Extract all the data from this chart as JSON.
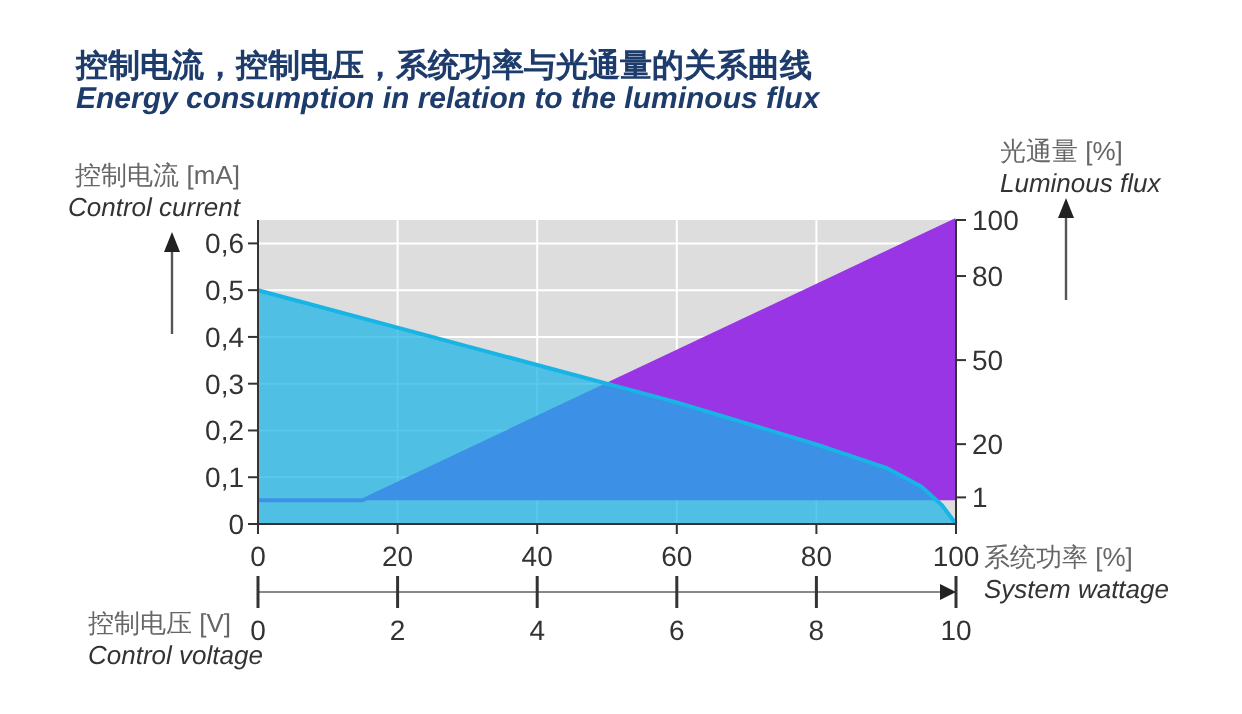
{
  "chart_data": {
    "type": "area",
    "title": "控制电流，控制电压，系统功率与光通量的关系曲线",
    "subtitle": "Energy consumption in relation to the luminous flux",
    "xlabel": "系统功率 [%]\nSystem wattage",
    "ylabel": "控制电流 [mA]\nControl current",
    "y2label": "光通量 [%]\nLuminous flux",
    "x2label": "控制电压 [V]\nControl voltage",
    "series": [
      {
        "color": "#9a35e6",
        "axis": "y2",
        "x": [
          0,
          15,
          100
        ],
        "values": [
          0,
          0,
          100
        ]
      },
      {
        "color": "#18b4e6",
        "x": [
          0,
          20,
          40,
          60,
          80,
          90,
          95,
          98,
          100
        ],
        "values": [
          0.5,
          0.42,
          0.34,
          0.26,
          0.17,
          0.12,
          0.08,
          0.04,
          0
        ]
      }
    ],
    "xlim": [
      0,
      100
    ],
    "xticks": [
      0,
      20,
      40,
      60,
      80,
      100
    ],
    "x2lim": [
      0,
      10
    ],
    "x2ticks": [
      0,
      2,
      4,
      6,
      8,
      10
    ],
    "ylim": [
      0,
      0.65
    ],
    "yticks": [
      0,
      {
        "value": 0.1,
        "label": "0,1"
      },
      {
        "value": 0.2,
        "label": "0,2"
      },
      {
        "value": 0.3,
        "label": "0,3"
      },
      {
        "value": 0.4,
        "label": "0,4"
      },
      {
        "value": 0.5,
        "label": "0,5"
      },
      {
        "value": 0.6,
        "label": "0,6"
      }
    ],
    "y2lim": [
      -8.5,
      100
    ],
    "y2ticks": [
      1,
      20,
      50,
      80,
      100
    ],
    "grid": true
  }
}
